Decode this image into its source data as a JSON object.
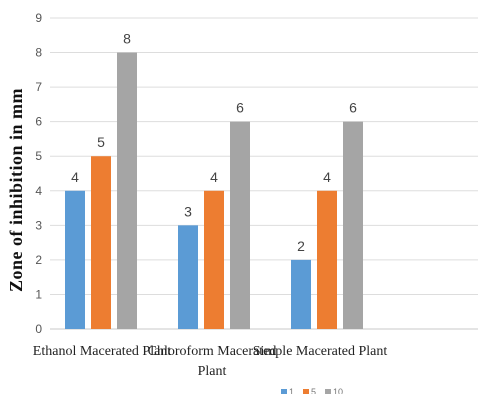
{
  "chart_data": {
    "type": "bar",
    "categories": [
      "Ethanol Macerated Plant",
      "Chloroform Macerated Plant",
      "Simple Macerated Plant"
    ],
    "series": [
      {
        "name": "1",
        "color": "#5b9bd5",
        "values": [
          4,
          3,
          2
        ]
      },
      {
        "name": "5",
        "color": "#ed7d31",
        "values": [
          5,
          4,
          4
        ]
      },
      {
        "name": "10",
        "color": "#a5a5a5",
        "values": [
          8,
          6,
          6
        ]
      }
    ],
    "ylabel": "Zone of inhibition in mm",
    "xlabel": "",
    "title": "",
    "ylim": [
      0,
      9
    ],
    "yticks": [
      0,
      1,
      2,
      3,
      4,
      5,
      6,
      7,
      8,
      9
    ],
    "grid": true,
    "legend": "bottom",
    "data_labels": true
  }
}
